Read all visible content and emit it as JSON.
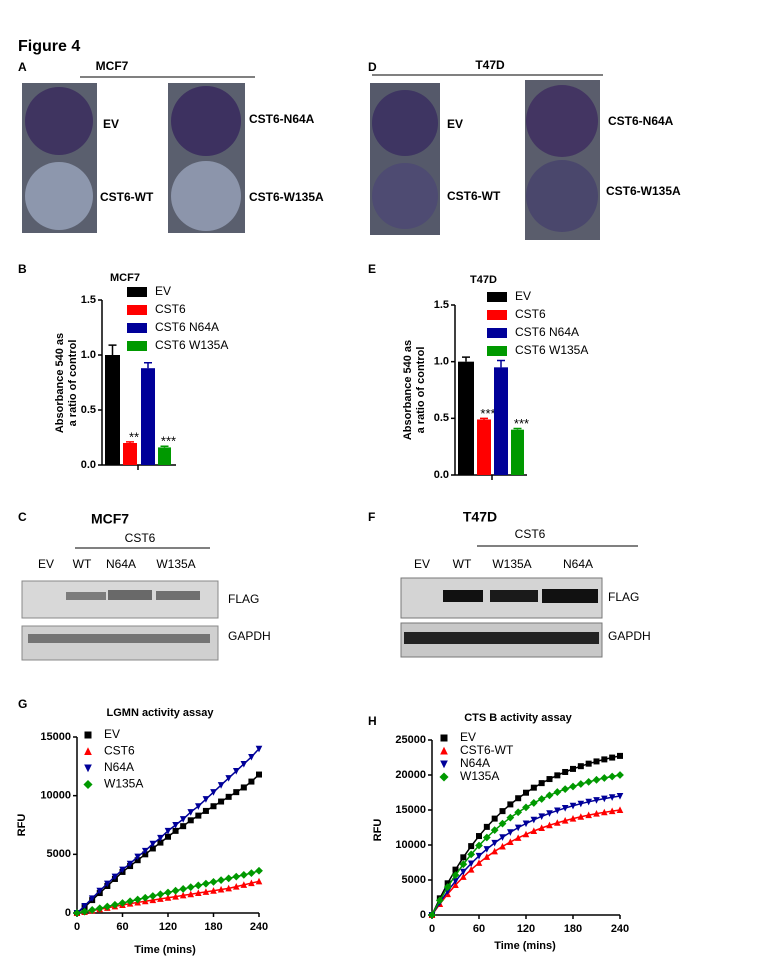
{
  "figure_title": "Figure 4",
  "panel_a": {
    "letter": "A",
    "cell_line": "MCF7",
    "well_labels": [
      "EV",
      "CST6-WT",
      "CST6-N64A",
      "CST6-W135A"
    ]
  },
  "panel_d": {
    "letter": "D",
    "cell_line": "T47D",
    "well_labels": [
      "EV",
      "CST6-WT",
      "CST6-N64A",
      "CST6-W135A"
    ]
  },
  "panel_c": {
    "letter": "C",
    "cell_line": "MCF7",
    "group": "CST6",
    "lanes": [
      "EV",
      "WT",
      "N64A",
      "W135A"
    ],
    "bands": [
      "FLAG",
      "GAPDH"
    ]
  },
  "panel_f": {
    "letter": "F",
    "cell_line": "T47D",
    "group": "CST6",
    "lanes": [
      "EV",
      "WT",
      "W135A",
      "N64A"
    ],
    "bands": [
      "FLAG",
      "GAPDH"
    ]
  },
  "chart_data": [
    {
      "type": "bar",
      "panel": "B",
      "title": "MCF7",
      "y_label": [
        "Absorbance 540 as",
        "a ratio of control"
      ],
      "ylim": [
        0,
        1.5
      ],
      "yticks": [
        {
          "value": 0,
          "label": "0.0"
        },
        0.5,
        {
          "value": 1,
          "label": "1.0"
        },
        1.5
      ],
      "series": [
        {
          "name": "EV",
          "color": "#000000",
          "values": [
            1.0
          ],
          "errors": [
            0.09
          ]
        },
        {
          "name": "CST6",
          "color": "#ff0000",
          "values": [
            0.2
          ],
          "errors": [
            0.01
          ],
          "annotation": "**"
        },
        {
          "name": "CST6 N64A",
          "color": "#000099",
          "values": [
            0.88
          ],
          "errors": [
            0.05
          ]
        },
        {
          "name": "CST6 W135A",
          "color": "#009900",
          "values": [
            0.16
          ],
          "errors": [
            0.01
          ],
          "annotation": "***"
        }
      ]
    },
    {
      "type": "bar",
      "panel": "E",
      "title": "T47D",
      "y_label": [
        "Absorbance 540 as",
        "a ratio of control"
      ],
      "ylim": [
        0,
        1.5
      ],
      "yticks": [
        {
          "value": 0,
          "label": "0.0"
        },
        0.5,
        {
          "value": 1,
          "label": "1.0"
        },
        1.5
      ],
      "series": [
        {
          "name": "EV",
          "color": "#000000",
          "values": [
            1.0
          ],
          "errors": [
            0.04
          ]
        },
        {
          "name": "CST6",
          "color": "#ff0000",
          "values": [
            0.49
          ],
          "errors": [
            0.01
          ],
          "annotation": "***"
        },
        {
          "name": "CST6 N64A",
          "color": "#000099",
          "values": [
            0.95
          ],
          "errors": [
            0.06
          ]
        },
        {
          "name": "CST6 W135A",
          "color": "#009900",
          "values": [
            0.4
          ],
          "errors": [
            0.01
          ],
          "annotation": "***"
        }
      ]
    },
    {
      "type": "line",
      "panel": "G",
      "title": "LGMN activity assay",
      "x_label": "Time (mins)",
      "y_label": "RFU",
      "xlim": [
        0,
        240
      ],
      "xticks": [
        0,
        60,
        120,
        180,
        240
      ],
      "ylim": [
        0,
        15000
      ],
      "yticks": [
        0,
        5000,
        10000,
        15000
      ],
      "x": [
        0,
        10,
        20,
        30,
        40,
        50,
        60,
        70,
        80,
        90,
        100,
        110,
        120,
        130,
        140,
        150,
        160,
        170,
        180,
        190,
        200,
        210,
        220,
        230,
        240
      ],
      "series": [
        {
          "name": "EV",
          "color": "#000000",
          "marker": "square",
          "values": [
            0,
            500,
            1100,
            1700,
            2300,
            2900,
            3500,
            4000,
            4500,
            5000,
            5500,
            6000,
            6500,
            7000,
            7400,
            7900,
            8300,
            8700,
            9100,
            9500,
            9900,
            10300,
            10700,
            11200,
            11800
          ]
        },
        {
          "name": "CST6",
          "color": "#ff0000",
          "marker": "triangle-up",
          "values": [
            0,
            80,
            200,
            320,
            440,
            560,
            680,
            800,
            900,
            1000,
            1100,
            1200,
            1300,
            1400,
            1500,
            1600,
            1700,
            1800,
            1900,
            2000,
            2100,
            2250,
            2400,
            2550,
            2700
          ]
        },
        {
          "name": "N64A",
          "color": "#000099",
          "marker": "triangle-down",
          "values": [
            0,
            600,
            1250,
            1900,
            2500,
            3100,
            3700,
            4200,
            4800,
            5300,
            5900,
            6400,
            7000,
            7500,
            8000,
            8600,
            9100,
            9700,
            10300,
            10900,
            11500,
            12100,
            12700,
            13300,
            14000
          ]
        },
        {
          "name": "W135A",
          "color": "#009900",
          "marker": "diamond",
          "values": [
            0,
            120,
            260,
            400,
            550,
            700,
            850,
            1000,
            1150,
            1300,
            1450,
            1600,
            1750,
            1900,
            2050,
            2200,
            2350,
            2500,
            2650,
            2800,
            2950,
            3100,
            3250,
            3400,
            3600
          ]
        }
      ]
    },
    {
      "type": "line",
      "panel": "H",
      "title": "CTS B activity assay",
      "x_label": "Time (mins)",
      "y_label": "RFU",
      "xlim": [
        0,
        240
      ],
      "xticks": [
        0,
        60,
        120,
        180,
        240
      ],
      "ylim": [
        0,
        25000
      ],
      "yticks": [
        0,
        5000,
        10000,
        15000,
        20000,
        25000
      ],
      "x": [
        0,
        10,
        20,
        30,
        40,
        50,
        60,
        70,
        80,
        90,
        100,
        110,
        120,
        130,
        140,
        150,
        160,
        170,
        180,
        190,
        200,
        210,
        220,
        230,
        240
      ],
      "series": [
        {
          "name": "EV",
          "color": "#000000",
          "marker": "square",
          "values": [
            0,
            2380,
            4530,
            6480,
            8240,
            9840,
            11280,
            12590,
            13770,
            14840,
            15800,
            16680,
            17470,
            18190,
            18840,
            19420,
            19950,
            20430,
            20870,
            21260,
            21620,
            21940,
            22230,
            22490,
            22730
          ]
        },
        {
          "name": "CST6-WT",
          "color": "#ff0000",
          "marker": "triangle-up",
          "values": [
            0,
            1570,
            2990,
            4280,
            5440,
            6490,
            7440,
            8310,
            9090,
            9790,
            10430,
            11010,
            11530,
            12000,
            12430,
            12820,
            13170,
            13480,
            13770,
            14030,
            14270,
            14480,
            14670,
            14840,
            15000
          ]
        },
        {
          "name": "N64A",
          "color": "#000099",
          "marker": "triangle-down",
          "values": [
            0,
            1780,
            3390,
            4850,
            6170,
            7360,
            8440,
            9410,
            10300,
            11100,
            11820,
            12480,
            13070,
            13600,
            14090,
            14530,
            14920,
            15280,
            15610,
            15900,
            16170,
            16410,
            16630,
            16820,
            17000
          ]
        },
        {
          "name": "W135A",
          "color": "#009900",
          "marker": "diamond",
          "values": [
            0,
            2090,
            3990,
            5700,
            7250,
            8660,
            9930,
            11070,
            12120,
            13050,
            13910,
            14680,
            15370,
            16010,
            16570,
            17090,
            17560,
            17980,
            18360,
            18710,
            19020,
            19310,
            19570,
            19790,
            20000
          ]
        }
      ]
    }
  ]
}
